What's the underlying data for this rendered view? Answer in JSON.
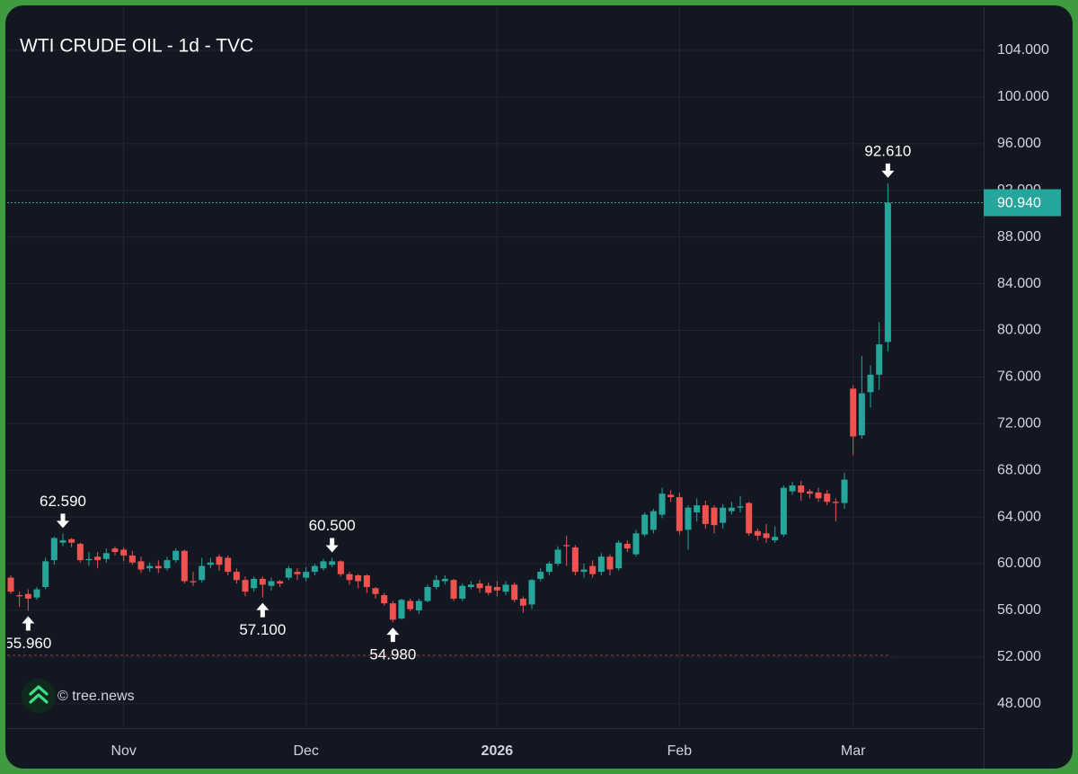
{
  "chart_data": {
    "type": "candlestick",
    "title": "WTI CRUDE OIL - 1d - TVC",
    "watermark": "© tree.news",
    "categories": [
      null,
      null,
      null,
      null,
      null,
      null,
      null,
      null,
      null,
      null,
      null,
      null,
      null,
      "Nov",
      null,
      null,
      null,
      null,
      null,
      null,
      null,
      null,
      null,
      null,
      null,
      null,
      null,
      null,
      null,
      null,
      null,
      null,
      null,
      null,
      "Dec",
      null,
      null,
      null,
      null,
      null,
      null,
      null,
      null,
      null,
      null,
      null,
      null,
      null,
      null,
      null,
      null,
      null,
      null,
      null,
      null,
      null,
      "2026",
      null,
      null,
      null,
      null,
      null,
      null,
      null,
      null,
      null,
      null,
      null,
      null,
      null,
      null,
      null,
      null,
      null,
      null,
      null,
      null,
      "Feb",
      null,
      null,
      null,
      null,
      null,
      null,
      null,
      null,
      null,
      null,
      null,
      null,
      null,
      null,
      null,
      null,
      null,
      null,
      null,
      "Mar",
      null,
      null,
      null,
      null
    ],
    "bold_category_indices": [
      56
    ],
    "open": [
      58.8,
      57.3,
      57.4,
      57.1,
      58.0,
      60.3,
      61.8,
      62.1,
      61.7,
      60.3,
      60.6,
      60.4,
      61.3,
      61.2,
      60.7,
      60.2,
      59.6,
      59.8,
      59.6,
      60.3,
      61.1,
      58.5,
      58.6,
      59.9,
      60.6,
      60.5,
      59.3,
      58.6,
      57.9,
      58.7,
      58.1,
      58.5,
      58.8,
      59.3,
      58.8,
      59.3,
      59.6,
      59.9,
      60.2,
      59.1,
      59.0,
      59.0,
      57.9,
      57.3,
      56.6,
      55.3,
      56.8,
      56.0,
      56.8,
      58.0,
      58.5,
      58.6,
      57.0,
      58.0,
      58.3,
      58.1,
      58.0,
      57.6,
      58.2,
      57.0,
      56.5,
      58.7,
      59.3,
      60.0,
      61.6,
      61.4,
      59.3,
      59.8,
      59.3,
      60.6,
      59.6,
      61.7,
      60.8,
      62.5,
      62.9,
      64.2,
      65.9,
      65.7,
      62.9,
      64.4,
      65.0,
      64.8,
      63.5,
      64.5,
      64.8,
      65.2,
      62.8,
      62.6,
      62.0,
      62.5,
      66.2,
      66.7,
      66.2,
      66.1,
      66.0,
      65.3,
      65.2,
      75.0,
      71.0,
      74.7,
      76.2,
      79.0
    ],
    "high": [
      59.0,
      57.6,
      57.8,
      58.0,
      60.5,
      62.3,
      62.59,
      62.2,
      61.8,
      61.0,
      61.0,
      61.3,
      61.5,
      61.4,
      61.1,
      60.6,
      60.1,
      60.3,
      60.6,
      61.3,
      61.2,
      59.3,
      60.5,
      60.5,
      60.8,
      60.7,
      59.6,
      58.9,
      58.9,
      58.9,
      58.8,
      58.6,
      59.8,
      59.6,
      59.7,
      60.0,
      60.4,
      60.5,
      60.3,
      59.3,
      59.1,
      59.1,
      58.0,
      57.5,
      56.8,
      57.0,
      57.0,
      57.0,
      58.2,
      59.0,
      59.0,
      58.7,
      58.3,
      58.5,
      58.6,
      58.4,
      58.5,
      58.5,
      58.4,
      57.2,
      58.7,
      59.6,
      60.2,
      61.5,
      62.4,
      61.6,
      60.0,
      60.3,
      60.9,
      60.8,
      62.0,
      62.0,
      62.9,
      64.4,
      64.7,
      66.5,
      66.3,
      66.1,
      65.0,
      65.6,
      65.4,
      65.0,
      65.1,
      65.3,
      65.8,
      65.3,
      63.0,
      63.4,
      63.2,
      66.7,
      67.0,
      67.1,
      66.4,
      66.5,
      66.3,
      65.6,
      67.8,
      75.3,
      77.8,
      77.0,
      80.7,
      92.61
    ],
    "low": [
      57.4,
      56.3,
      55.96,
      56.9,
      57.8,
      59.9,
      61.5,
      61.4,
      60.1,
      59.8,
      59.6,
      60.1,
      60.7,
      60.2,
      59.9,
      59.2,
      59.3,
      59.2,
      59.4,
      60.1,
      58.3,
      58.1,
      58.4,
      59.6,
      59.4,
      59.0,
      58.3,
      57.2,
      57.6,
      57.1,
      57.7,
      58.0,
      58.6,
      58.6,
      58.5,
      59.0,
      59.4,
      59.7,
      58.9,
      58.2,
      57.9,
      57.5,
      57.0,
      56.4,
      54.98,
      55.2,
      55.9,
      55.7,
      56.7,
      57.8,
      58.2,
      56.8,
      56.8,
      57.8,
      57.5,
      57.3,
      57.2,
      57.3,
      56.7,
      55.8,
      56.1,
      58.5,
      59.0,
      59.8,
      59.8,
      59.0,
      58.8,
      58.8,
      59.0,
      59.0,
      59.4,
      61.0,
      60.6,
      62.3,
      62.6,
      63.9,
      65.3,
      62.5,
      61.2,
      63.6,
      63.0,
      62.6,
      63.0,
      64.2,
      64.4,
      62.4,
      62.0,
      61.8,
      61.8,
      62.3,
      65.9,
      65.4,
      65.6,
      65.3,
      65.0,
      63.6,
      64.7,
      69.3,
      70.7,
      73.4,
      74.9,
      78.2
    ],
    "close": [
      57.6,
      57.2,
      57.0,
      57.8,
      60.2,
      62.2,
      62.0,
      61.8,
      60.3,
      60.4,
      60.3,
      60.9,
      61.0,
      60.7,
      60.1,
      59.5,
      59.8,
      59.6,
      60.3,
      61.1,
      58.5,
      58.4,
      59.8,
      60.1,
      59.9,
      59.3,
      58.6,
      57.6,
      58.7,
      58.2,
      58.5,
      58.3,
      59.6,
      59.1,
      59.3,
      59.8,
      60.2,
      60.2,
      59.1,
      58.6,
      58.5,
      58.0,
      57.4,
      56.6,
      55.2,
      56.9,
      56.1,
      56.8,
      58.0,
      58.6,
      58.7,
      57.0,
      58.1,
      58.2,
      57.9,
      57.5,
      57.7,
      58.2,
      56.9,
      56.4,
      58.6,
      59.3,
      60.0,
      61.2,
      61.5,
      59.3,
      59.5,
      59.1,
      60.6,
      59.5,
      61.8,
      61.3,
      62.6,
      64.2,
      64.5,
      66.0,
      65.7,
      62.8,
      64.8,
      65.0,
      63.4,
      63.3,
      64.8,
      64.8,
      64.9,
      62.6,
      62.4,
      62.2,
      62.3,
      66.5,
      66.7,
      66.1,
      66.0,
      65.6,
      65.3,
      65.2,
      67.2,
      70.9,
      74.6,
      76.2,
      78.8,
      90.94
    ],
    "up_color": "#26a69a",
    "down_color": "#ef5350",
    "ylim": [
      45.9,
      107.7
    ],
    "yticks": [
      {
        "value": 48,
        "label": "48.000"
      },
      {
        "value": 52,
        "label": "52.000"
      },
      {
        "value": 56,
        "label": "56.000"
      },
      {
        "value": 60,
        "label": "60.000"
      },
      {
        "value": 64,
        "label": "64.000"
      },
      {
        "value": 68,
        "label": "68.000"
      },
      {
        "value": 72,
        "label": "72.000"
      },
      {
        "value": 76,
        "label": "76.000"
      },
      {
        "value": 80,
        "label": "80.000"
      },
      {
        "value": 84,
        "label": "84.000"
      },
      {
        "value": 88,
        "label": "88.000"
      },
      {
        "value": 92,
        "label": "92.000"
      },
      {
        "value": 96,
        "label": "96.000"
      },
      {
        "value": 100,
        "label": "100.000"
      },
      {
        "value": 104,
        "label": "104.000"
      }
    ],
    "grid": true,
    "last_price": {
      "value": 90.94,
      "label": "90.940"
    },
    "reference_level": 52.15,
    "annotations": [
      {
        "value": 55.96,
        "label": "55.960",
        "index": 2,
        "position": "below"
      },
      {
        "value": 62.59,
        "label": "62.590",
        "index": 6,
        "position": "above"
      },
      {
        "value": 57.1,
        "label": "57.100",
        "index": 29,
        "position": "below"
      },
      {
        "value": 60.5,
        "label": "60.500",
        "index": 37,
        "position": "above"
      },
      {
        "value": 54.98,
        "label": "54.980",
        "index": 44,
        "position": "below"
      },
      {
        "value": 92.61,
        "label": "92.610",
        "index": 101,
        "position": "above"
      }
    ]
  }
}
